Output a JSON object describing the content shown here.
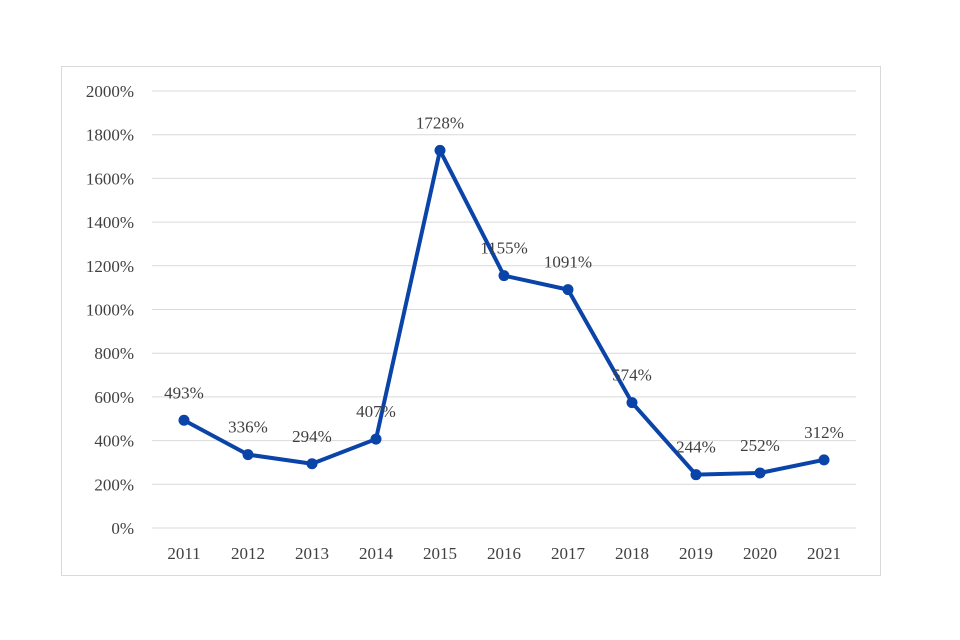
{
  "chart_data": {
    "type": "line",
    "title": "",
    "xlabel": "",
    "ylabel": "",
    "categories": [
      "2011",
      "2012",
      "2013",
      "2014",
      "2015",
      "2016",
      "2017",
      "2018",
      "2019",
      "2020",
      "2021"
    ],
    "series": [
      {
        "name": "",
        "values": [
          493,
          336,
          294,
          407,
          1728,
          1155,
          1091,
          574,
          244,
          252,
          312
        ],
        "labels": [
          "493%",
          "336%",
          "294%",
          "407%",
          "1728%",
          "1155%",
          "1091%",
          "574%",
          "244%",
          "252%",
          "312%"
        ]
      }
    ],
    "ylim": [
      0,
      2000
    ],
    "yticks": [
      0,
      200,
      400,
      600,
      800,
      1000,
      1200,
      1400,
      1600,
      1800,
      2000
    ],
    "ytick_labels": [
      "0%",
      "200%",
      "400%",
      "600%",
      "800%",
      "1000%",
      "1200%",
      "1400%",
      "1600%",
      "1800%",
      "2000%"
    ],
    "grid": true,
    "legend": "none",
    "line_color": "#0b44a8",
    "grid_color": "#d9d9d9",
    "text_color": "#404040"
  }
}
